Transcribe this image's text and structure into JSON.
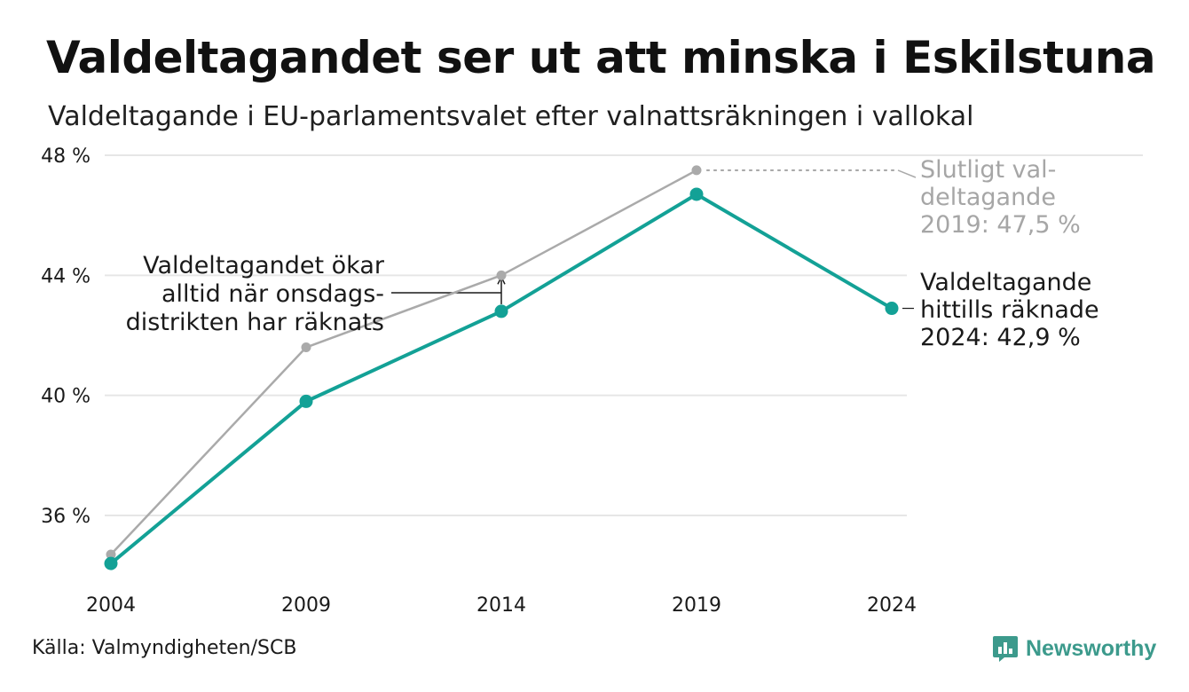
{
  "title": "Valdeltagandet ser ut att minska i Eskilstuna",
  "subtitle": "Valdeltagande i EU-parlamentsvalet efter valnattsräkningen i vallokal",
  "source": "Källa: Valmyndigheten/SCB",
  "logo": {
    "text": "Newsworthy",
    "icon": "newsworthy-logo-icon"
  },
  "colors": {
    "main_series": "#13a196",
    "final_series": "#aaaaaa",
    "grid": "#e6e6e6",
    "text": "#1a1a1a",
    "muted_text": "#a6a6a6",
    "brand": "#3c9a8c"
  },
  "annotations": {
    "wednesday_note": [
      "Valdeltagandet ökar",
      "alltid när onsdags-",
      "distrikten har räknats"
    ],
    "final_2019_note": [
      "Slutligt val-",
      "deltagande",
      "2019: 47,5 %"
    ],
    "current_2024_note": [
      "Valdeltagande",
      "hittills räknade",
      "2024: 42,9 %"
    ]
  },
  "chart_data": {
    "type": "line",
    "title": "Valdeltagandet ser ut att minska i Eskilstuna",
    "subtitle": "Valdeltagande i EU-parlamentsvalet efter valnattsräkningen i vallokal",
    "x": [
      "2004",
      "2009",
      "2014",
      "2019",
      "2024"
    ],
    "xlabel": "",
    "ylabel": "",
    "ylim": [
      33.5,
      48
    ],
    "yticks": [
      36,
      40,
      44,
      48
    ],
    "ytick_labels": [
      "36 %",
      "40 %",
      "44 %",
      "48 %"
    ],
    "grid": true,
    "legend": "none (direct labels)",
    "series": [
      {
        "values": [
          34.7,
          41.6,
          44.0,
          47.5,
          null
        ]
      },
      {
        "values": [
          34.4,
          39.8,
          42.8,
          46.7,
          42.9
        ]
      }
    ]
  }
}
